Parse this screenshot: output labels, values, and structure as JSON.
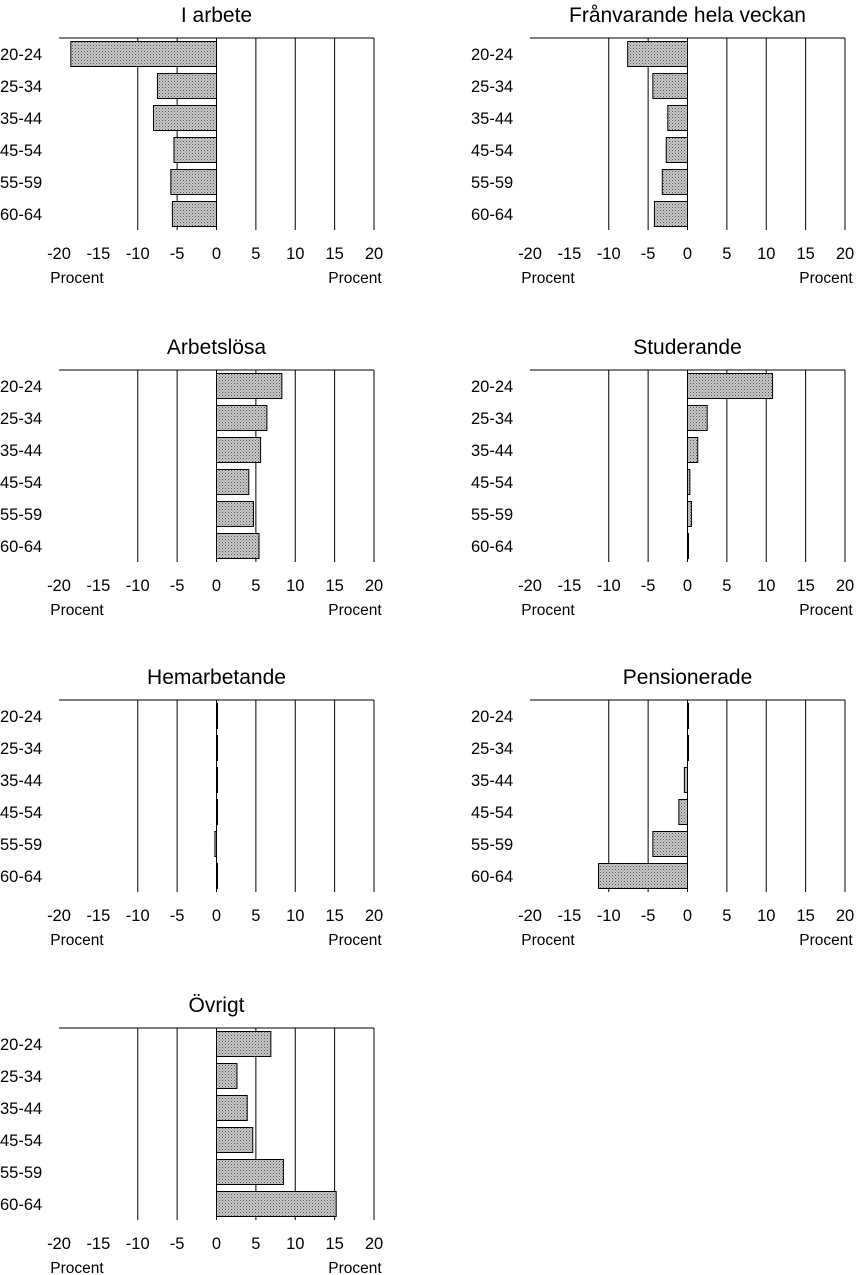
{
  "chart_data": [
    {
      "type": "bar",
      "title": "I arbete",
      "categories": [
        "20-24",
        "25-34",
        "35-44",
        "45-54",
        "55-59",
        "60-64"
      ],
      "values": [
        -18.5,
        -7.5,
        -8,
        -5.4,
        -5.8,
        -5.6
      ],
      "xlim": [
        -20,
        20
      ],
      "xticks": [
        "-20",
        "-15",
        "-10",
        "-5",
        "0",
        "5",
        "10",
        "15",
        "20"
      ],
      "xlabel_left": "Procent",
      "xlabel_right": "Procent",
      "grid": "vertical lines at -10, -5, 0, 5, 10, 15, 20"
    },
    {
      "type": "bar",
      "title": "Frånvarande hela veckan",
      "categories": [
        "20-24",
        "25-34",
        "35-44",
        "45-54",
        "55-59",
        "60-64"
      ],
      "values": [
        -7.6,
        -4.4,
        -2.5,
        -2.7,
        -3.2,
        -4.2
      ],
      "xlim": [
        -20,
        20
      ],
      "xticks": [
        "-20",
        "-15",
        "-10",
        "-5",
        "0",
        "5",
        "10",
        "15",
        "20"
      ],
      "xlabel_left": "Procent",
      "xlabel_right": "Procent",
      "grid": "vertical lines at -10, -5, 0, 5, 10, 15, 20"
    },
    {
      "type": "bar",
      "title": "Arbetslösa",
      "categories": [
        "20-24",
        "25-34",
        "35-44",
        "45-54",
        "55-59",
        "60-64"
      ],
      "values": [
        8.3,
        6.4,
        5.6,
        4.1,
        4.7,
        5.4
      ],
      "xlim": [
        -20,
        20
      ],
      "xticks": [
        "-20",
        "-15",
        "-10",
        "-5",
        "0",
        "5",
        "10",
        "15",
        "20"
      ],
      "xlabel_left": "Procent",
      "xlabel_right": "Procent",
      "grid": "vertical lines at -10, -5, 0, 5, 10, 15, 20"
    },
    {
      "type": "bar",
      "title": "Studerande",
      "categories": [
        "20-24",
        "25-34",
        "35-44",
        "45-54",
        "55-59",
        "60-64"
      ],
      "values": [
        10.8,
        2.5,
        1.3,
        0.3,
        0.5,
        0.1
      ],
      "xlim": [
        -20,
        20
      ],
      "xticks": [
        "-20",
        "-15",
        "-10",
        "-5",
        "0",
        "5",
        "10",
        "15",
        "20"
      ],
      "xlabel_left": "Procent",
      "xlabel_right": "Procent",
      "grid": "vertical lines at -10, -5, 0, 5, 10, 15, 20"
    },
    {
      "type": "bar",
      "title": "Hemarbetande",
      "categories": [
        "20-24",
        "25-34",
        "35-44",
        "45-54",
        "55-59",
        "60-64"
      ],
      "values": [
        0.1,
        0.1,
        0.1,
        0.1,
        -0.2,
        0.1
      ],
      "xlim": [
        -20,
        20
      ],
      "xticks": [
        "-20",
        "-15",
        "-10",
        "-5",
        "0",
        "5",
        "10",
        "15",
        "20"
      ],
      "xlabel_left": "Procent",
      "xlabel_right": "Procent",
      "grid": "vertical lines at -10, -5, 0, 5, 10, 15, 20"
    },
    {
      "type": "bar",
      "title": "Pensionerade",
      "categories": [
        "20-24",
        "25-34",
        "35-44",
        "45-54",
        "55-59",
        "60-64"
      ],
      "values": [
        0.1,
        0,
        -0.4,
        -1.1,
        -4.4,
        -11.3
      ],
      "xlim": [
        -20,
        20
      ],
      "xticks": [
        "-20",
        "-15",
        "-10",
        "-5",
        "0",
        "5",
        "10",
        "15",
        "20"
      ],
      "xlabel_left": "Procent",
      "xlabel_right": "Procent",
      "grid": "vertical lines at -10, -5, 0, 5, 10, 15, 20"
    },
    {
      "type": "bar",
      "title": "Övrigt",
      "categories": [
        "20-24",
        "25-34",
        "35-44",
        "45-54",
        "55-59",
        "60-64"
      ],
      "values": [
        6.9,
        2.6,
        3.9,
        4.6,
        8.5,
        15.2
      ],
      "xlim": [
        -20,
        20
      ],
      "xticks": [
        "-20",
        "-15",
        "-10",
        "-5",
        "0",
        "5",
        "10",
        "15",
        "20"
      ],
      "xlabel_left": "Procent",
      "xlabel_right": "Procent",
      "grid": "vertical lines at -10, -5, 0, 5, 10, 15, 20"
    }
  ],
  "colors": {
    "bar_fill": "#c9c9c9",
    "bar_dots": "#555555",
    "bar_edge": "#000000",
    "axis": "#000000",
    "background": "#ffffff"
  }
}
